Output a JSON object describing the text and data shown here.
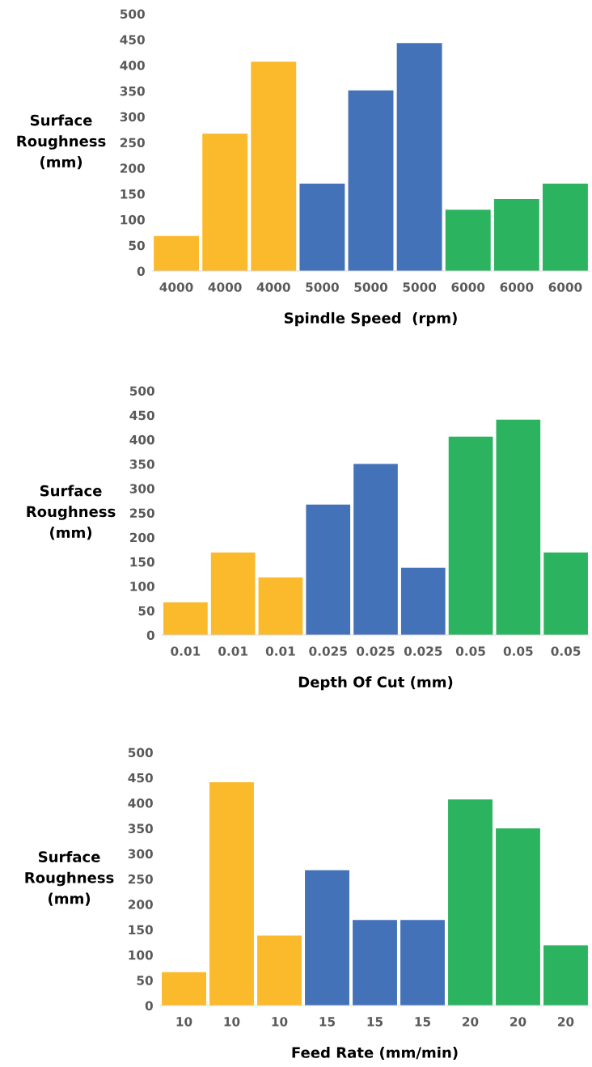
{
  "chart_data": [
    {
      "type": "bar",
      "xlabel": "Spindle Speed  (rpm)",
      "ylabel": "Surface\nRoughness\n(mm)",
      "categories": [
        "4000",
        "4000",
        "4000",
        "5000",
        "5000",
        "5000",
        "6000",
        "6000",
        "6000"
      ],
      "values": [
        68,
        267,
        407,
        170,
        351,
        443,
        119,
        140,
        170
      ],
      "colors": [
        "#fbb92c",
        "#fbb92c",
        "#fbb92c",
        "#4472b8",
        "#4472b8",
        "#4472b8",
        "#2bb35f",
        "#2bb35f",
        "#2bb35f"
      ],
      "ylim": [
        0,
        500
      ],
      "yticks": [
        0,
        50,
        100,
        150,
        200,
        250,
        300,
        350,
        400,
        450,
        500
      ],
      "grid": false
    },
    {
      "type": "bar",
      "xlabel": "Depth Of Cut (mm)",
      "ylabel": "Surface\nRoughness\n(mm)",
      "categories": [
        "0.01",
        "0.01",
        "0.01",
        "0.025",
        "0.025",
        "0.025",
        "0.05",
        "0.05",
        "0.05"
      ],
      "values": [
        67,
        169,
        118,
        267,
        350,
        138,
        406,
        441,
        169
      ],
      "colors": [
        "#fbb92c",
        "#fbb92c",
        "#fbb92c",
        "#4472b8",
        "#4472b8",
        "#4472b8",
        "#2bb35f",
        "#2bb35f",
        "#2bb35f"
      ],
      "ylim": [
        0,
        500
      ],
      "yticks": [
        0,
        50,
        100,
        150,
        200,
        250,
        300,
        350,
        400,
        450,
        500
      ],
      "grid": false
    },
    {
      "type": "bar",
      "xlabel": "Feed Rate (mm/min)",
      "ylabel": "Surface\nRoughness\n(mm)",
      "categories": [
        "10",
        "10",
        "10",
        "15",
        "15",
        "15",
        "20",
        "20",
        "20"
      ],
      "values": [
        66,
        441,
        138,
        267,
        169,
        169,
        407,
        350,
        119
      ],
      "colors": [
        "#fbb92c",
        "#fbb92c",
        "#fbb92c",
        "#4472b8",
        "#4472b8",
        "#4472b8",
        "#2bb35f",
        "#2bb35f",
        "#2bb35f"
      ],
      "ylim": [
        0,
        500
      ],
      "yticks": [
        0,
        50,
        100,
        150,
        200,
        250,
        300,
        350,
        400,
        450,
        500
      ],
      "grid": false
    }
  ]
}
